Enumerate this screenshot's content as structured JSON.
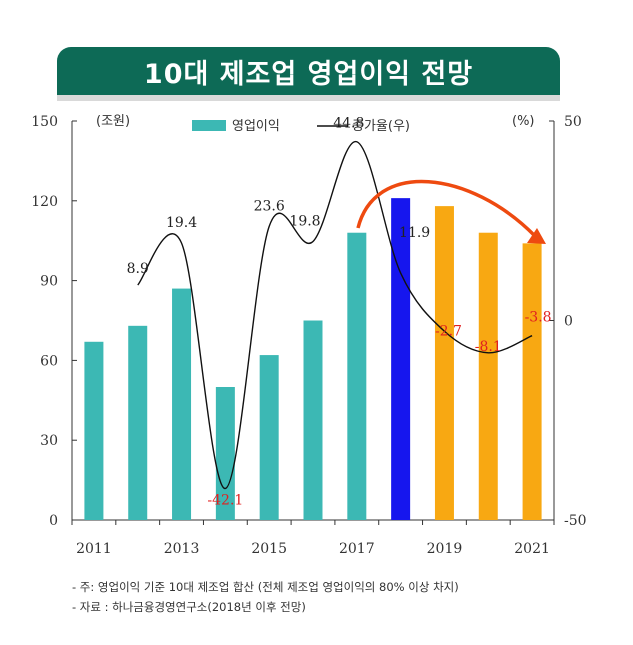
{
  "title": "10대 제조업 영업이익 전망",
  "chart_data": {
    "type": "bar+line",
    "x": [
      "2011",
      "2012",
      "2013",
      "2014",
      "2015",
      "2016",
      "2017",
      "2018",
      "2019",
      "2020",
      "2021"
    ],
    "x_tick_labels": [
      "2011",
      "2013",
      "2015",
      "2017",
      "2019",
      "2021"
    ],
    "left_axis": {
      "unit": "(조원)",
      "range": [
        0,
        150
      ],
      "ticks": [
        "0",
        "30",
        "60",
        "90",
        "120",
        "150"
      ]
    },
    "right_axis": {
      "unit": "(%)",
      "range": [
        -50,
        50
      ],
      "ticks": [
        "-50",
        "0",
        "50"
      ]
    },
    "legend": [
      "영업이익",
      "증가율(우)"
    ],
    "series": [
      {
        "name": "영업이익",
        "type": "bar",
        "axis": "left",
        "values": [
          67,
          73,
          87,
          50,
          62,
          75,
          108,
          121,
          118,
          108,
          104
        ],
        "colors": [
          "#3cb8b4",
          "#3cb8b4",
          "#3cb8b4",
          "#3cb8b4",
          "#3cb8b4",
          "#3cb8b4",
          "#3cb8b4",
          "#1616ee",
          "#f8a812",
          "#f8a812",
          "#f8a812"
        ]
      },
      {
        "name": "증가율(우)",
        "type": "line",
        "axis": "right",
        "values": [
          null,
          8.9,
          19.4,
          -42.1,
          23.6,
          19.8,
          44.8,
          11.9,
          -2.7,
          -8.1,
          -3.8
        ]
      }
    ],
    "data_labels": [
      {
        "text": "8.9",
        "color": "#222222"
      },
      {
        "text": "19.4",
        "color": "#222222"
      },
      {
        "text": "-42.1",
        "color": "#e02020"
      },
      {
        "text": "23.6",
        "color": "#222222"
      },
      {
        "text": "19.8",
        "color": "#222222"
      },
      {
        "text": "44.8",
        "color": "#222222"
      },
      {
        "text": "11.9",
        "color": "#222222"
      },
      {
        "text": "-2.7",
        "color": "#e02020"
      },
      {
        "text": "-8.1",
        "color": "#e02020"
      },
      {
        "text": "-3.8",
        "color": "#e02020"
      }
    ],
    "trend_arrow_color": "#ee4a10"
  },
  "notes": [
    "- 주: 영업이익 기준 10대 제조업 합산 (전체 제조업 영업이익의 80% 이상 차지)",
    "- 자료 :  하나금융경영연구소(2018년 이후 전망)"
  ]
}
